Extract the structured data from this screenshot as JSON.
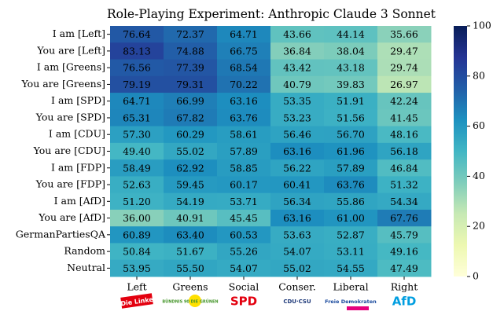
{
  "chart_data": {
    "type": "heatmap",
    "title": "Role-Playing Experiment: Anthropic Claude 3 Sonnet",
    "columns": [
      "Left",
      "Greens",
      "Social",
      "Conser.",
      "Liberal",
      "Right"
    ],
    "column_logos": [
      "Die Linke",
      "BÜNDNIS 90 DIE GRÜNEN",
      "SPD",
      "CDU·CSU",
      "Freie Demokraten",
      "AfD"
    ],
    "rows": [
      "I am [Left]",
      "You are [Left]",
      "I am [Greens]",
      "You are [Greens]",
      "I am [SPD]",
      "You are [SPD]",
      "I am [CDU]",
      "You are [CDU]",
      "I am [FDP]",
      "You are [FDP]",
      "I am [AfD]",
      "You are [AfD]",
      "GermanPartiesQA",
      "Random",
      "Neutral"
    ],
    "values": [
      [
        76.64,
        72.37,
        64.71,
        43.66,
        44.14,
        35.66
      ],
      [
        83.13,
        74.88,
        66.75,
        36.84,
        38.04,
        29.47
      ],
      [
        76.56,
        77.39,
        68.54,
        43.42,
        43.18,
        29.74
      ],
      [
        79.19,
        79.31,
        70.22,
        40.79,
        39.83,
        26.97
      ],
      [
        64.71,
        66.99,
        63.16,
        53.35,
        51.91,
        42.24
      ],
      [
        65.31,
        67.82,
        63.76,
        53.23,
        51.56,
        41.45
      ],
      [
        57.3,
        60.29,
        58.61,
        56.46,
        56.7,
        48.16
      ],
      [
        49.4,
        55.02,
        57.89,
        63.16,
        61.96,
        56.18
      ],
      [
        58.49,
        62.92,
        58.85,
        56.22,
        57.89,
        46.84
      ],
      [
        52.63,
        59.45,
        60.17,
        60.41,
        63.76,
        51.32
      ],
      [
        51.2,
        54.19,
        53.71,
        56.34,
        55.86,
        54.34
      ],
      [
        36.0,
        40.91,
        45.45,
        63.16,
        61.0,
        67.76
      ],
      [
        60.89,
        63.4,
        60.53,
        53.63,
        52.87,
        45.79
      ],
      [
        50.84,
        51.67,
        55.26,
        54.07,
        53.11,
        49.16
      ],
      [
        53.95,
        55.5,
        54.07,
        55.02,
        54.55,
        47.49
      ]
    ],
    "value_labels": [
      [
        "76.64",
        "72.37",
        "64.71",
        "43.66",
        "44.14",
        "35.66"
      ],
      [
        "83.13",
        "74.88",
        "66.75",
        "36.84",
        "38.04",
        "29.47"
      ],
      [
        "76.56",
        "77.39",
        "68.54",
        "43.42",
        "43.18",
        "29.74"
      ],
      [
        "79.19",
        "79.31",
        "70.22",
        "40.79",
        "39.83",
        "26.97"
      ],
      [
        "64.71",
        "66.99",
        "63.16",
        "53.35",
        "51.91",
        "42.24"
      ],
      [
        "65.31",
        "67.82",
        "63.76",
        "53.23",
        "51.56",
        "41.45"
      ],
      [
        "57.30",
        "60.29",
        "58.61",
        "56.46",
        "56.70",
        "48.16"
      ],
      [
        "49.40",
        "55.02",
        "57.89",
        "63.16",
        "61.96",
        "56.18"
      ],
      [
        "58.49",
        "62.92",
        "58.85",
        "56.22",
        "57.89",
        "46.84"
      ],
      [
        "52.63",
        "59.45",
        "60.17",
        "60.41",
        "63.76",
        "51.32"
      ],
      [
        "51.20",
        "54.19",
        "53.71",
        "56.34",
        "55.86",
        "54.34"
      ],
      [
        "36.00",
        "40.91",
        "45.45",
        "63.16",
        "61.00",
        "67.76"
      ],
      [
        "60.89",
        "63.40",
        "60.53",
        "53.63",
        "52.87",
        "45.79"
      ],
      [
        "50.84",
        "51.67",
        "55.26",
        "54.07",
        "53.11",
        "49.16"
      ],
      [
        "53.95",
        "55.50",
        "54.07",
        "55.02",
        "54.55",
        "47.49"
      ]
    ],
    "colormap": "YlGnBu",
    "zlim": [
      0,
      100
    ],
    "zticks": [
      0,
      20,
      40,
      60,
      80,
      100
    ]
  }
}
